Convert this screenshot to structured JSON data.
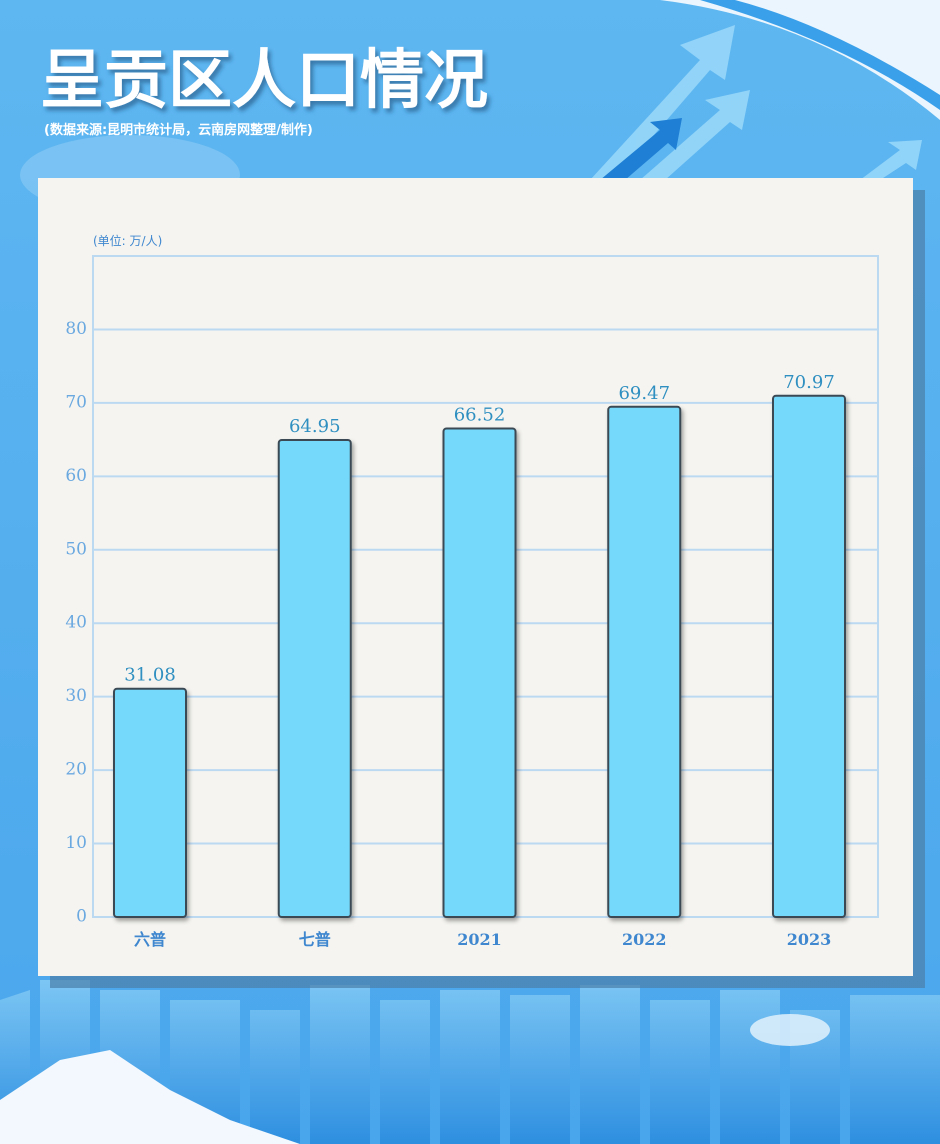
{
  "chart_data": {
    "type": "bar",
    "title": "呈贡区人口情况",
    "subtitle": "(数据来源:昆明市统计局，云南房网整理/制作)",
    "y_axis_label": "(单位: 万/人)",
    "categories": [
      "六普",
      "七普",
      "2021",
      "2022",
      "2023"
    ],
    "values": [
      31.08,
      64.95,
      66.52,
      69.47,
      70.97
    ],
    "color": "#74d9fb",
    "ylim": [
      0,
      90
    ],
    "yticks": [
      0,
      10,
      20,
      30,
      40,
      50,
      60,
      70,
      80
    ],
    "grid": true
  }
}
